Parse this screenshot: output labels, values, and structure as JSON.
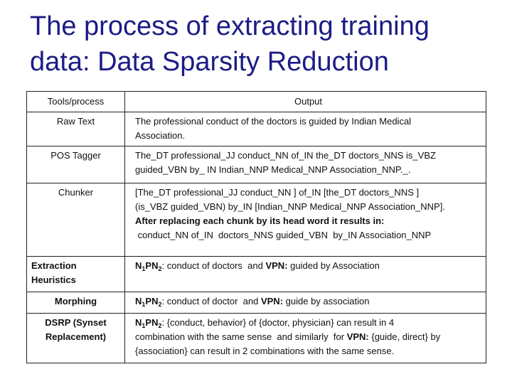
{
  "title": [
    "The process of extracting training",
    "data: Data Sparsity Reduction"
  ],
  "table": {
    "header": [
      "Tools/process",
      "Output"
    ],
    "rows": [
      {
        "tool": [
          [
            {
              "text": "Raw Text"
            }
          ]
        ],
        "output": [
          [
            {
              "text": "The professional conduct of the doctors is guided by Indian Medical"
            }
          ],
          [
            {
              "text": "Association."
            }
          ]
        ]
      },
      {
        "tool": [
          [
            {
              "text": "POS Tagger"
            }
          ]
        ],
        "output": [
          [
            {
              "text": "The_DT professional_JJ conduct_NN of_IN the_DT doctors_NNS is_VBZ"
            }
          ],
          [
            {
              "text": "guided_VBN by_ IN Indian_NNP Medical_NNP Association_NNP._."
            }
          ]
        ]
      },
      {
        "tool": [
          [
            {
              "text": "Chunker"
            }
          ]
        ],
        "output": [
          [
            {
              "text": "[The_DT professional_JJ conduct_NN ] of_IN [the_DT doctors_NNS ]"
            }
          ],
          [
            {
              "text": "(is_VBZ guided_VBN) by_IN [Indian_NNP Medical_NNP Association_NNP]."
            }
          ],
          [
            {
              "text": "After replacing each chunk by its head word it results in:",
              "bold": true
            }
          ],
          [
            {
              "text": " conduct_NN of_IN  doctors_NNS guided_VBN  by_IN Association_NNP"
            }
          ]
        ]
      },
      {
        "tool": [
          [
            {
              "text": "Extraction",
              "bold": true
            }
          ],
          [
            {
              "text": "Heuristics",
              "bold": true
            }
          ]
        ],
        "output": [
          [
            {
              "text": "N",
              "bold": true
            },
            {
              "text": "1",
              "bold": true,
              "sub": true
            },
            {
              "text": "PN",
              "bold": true
            },
            {
              "text": "2",
              "bold": true,
              "sub": true
            },
            {
              "text": ": conduct of doctors  and "
            },
            {
              "text": "VPN:",
              "bold": true
            },
            {
              "text": " guided by Association"
            }
          ]
        ]
      },
      {
        "tool": [
          [
            {
              "text": "Morphing",
              "bold": true
            }
          ]
        ],
        "output": [
          [
            {
              "text": "N",
              "bold": true
            },
            {
              "text": "1",
              "bold": true,
              "sub": true
            },
            {
              "text": "PN",
              "bold": true
            },
            {
              "text": "2",
              "bold": true,
              "sub": true
            },
            {
              "text": ": conduct of doctor  and "
            },
            {
              "text": "VPN:",
              "bold": true
            },
            {
              "text": " guide by association"
            }
          ]
        ]
      },
      {
        "tool": [
          [
            {
              "text": "DSRP (Synset",
              "bold": true
            }
          ],
          [
            {
              "text": "Replacement)",
              "bold": true
            }
          ]
        ],
        "output": [
          [
            {
              "text": "N",
              "bold": true
            },
            {
              "text": "1",
              "bold": true,
              "sub": true
            },
            {
              "text": "PN",
              "bold": true
            },
            {
              "text": "2",
              "bold": true,
              "sub": true
            },
            {
              "text": ": {conduct, behavior} of {doctor, physician} can result in 4"
            }
          ],
          [
            {
              "text": "combination with the same sense  and similarly  for "
            },
            {
              "text": "VPN:",
              "bold": true
            },
            {
              "text": " {guide, direct} by"
            }
          ],
          [
            {
              "text": "{association} can result in 2 combinations with the same sense."
            }
          ]
        ]
      }
    ]
  }
}
